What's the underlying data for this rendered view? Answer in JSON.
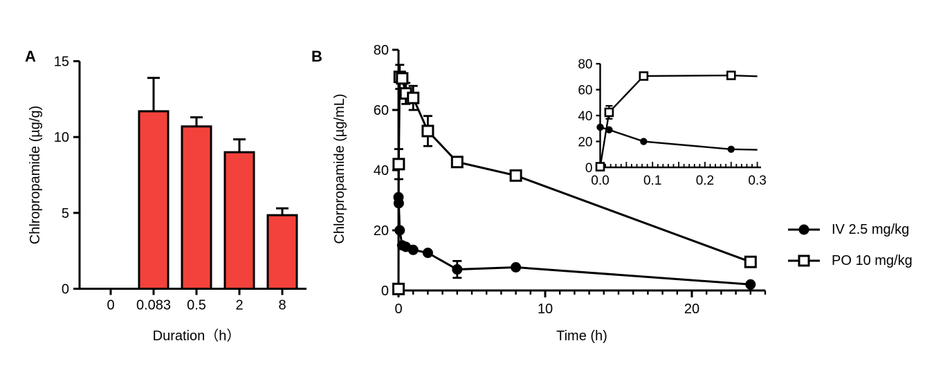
{
  "figure": {
    "background": "#ffffff",
    "text_color": "#000000"
  },
  "panels": {
    "a": {
      "label": "A"
    },
    "b": {
      "label": "B"
    }
  },
  "legend": {
    "items": [
      {
        "id": "iv",
        "label": "IV 2.5 mg/kg",
        "marker": "filled-circle"
      },
      {
        "id": "po",
        "label": "PO 10 mg/kg",
        "marker": "open-square"
      }
    ]
  },
  "colors": {
    "bar_fill": "#F3423B",
    "stroke": "#000000",
    "marker_open_fill": "#ffffff"
  },
  "chart_data": [
    {
      "id": "panel-a",
      "type": "bar",
      "title": "",
      "xlabel": "Duration（h）",
      "ylabel": "Chlropropamide (µg/g)",
      "categories": [
        "0",
        "0.083",
        "0.5",
        "2",
        "8"
      ],
      "values": [
        0,
        11.7,
        10.7,
        9.0,
        4.85
      ],
      "errors_upper": [
        0,
        2.2,
        0.6,
        0.85,
        0.45
      ],
      "ylim": [
        0,
        15
      ],
      "yticks": [
        0,
        5,
        10,
        15
      ],
      "ytick_labels": [
        "0",
        "5",
        "10",
        "15"
      ],
      "grid": false,
      "bar_color": "#F3423B"
    },
    {
      "id": "panel-b",
      "type": "line",
      "title": "",
      "xlabel": "Time (h)",
      "ylabel": "Chlorpropamide (µg/mL)",
      "xlim": [
        0,
        25
      ],
      "ylim": [
        0,
        80
      ],
      "xticks": [
        0,
        10,
        20
      ],
      "xtick_labels": [
        "0",
        "10",
        "20"
      ],
      "minor_xtick_every": 1,
      "yticks": [
        0,
        20,
        40,
        60,
        80
      ],
      "ytick_labels": [
        "0",
        "20",
        "40",
        "60",
        "80"
      ],
      "grid": false,
      "legend_position": "right-outside",
      "series": [
        {
          "name": "IV 2.5 mg/kg",
          "marker": "filled-circle",
          "x": [
            0,
            0.017,
            0.083,
            0.25,
            0.5,
            1,
            2,
            4,
            8,
            24
          ],
          "y": [
            31,
            29,
            20,
            15,
            14.5,
            13.5,
            12.5,
            7,
            7.7,
            2
          ],
          "err": [
            0,
            0,
            0,
            0,
            0,
            0,
            0,
            2.8,
            0,
            0
          ]
        },
        {
          "name": "PO 10 mg/kg",
          "marker": "open-square",
          "x": [
            0,
            0.017,
            0.083,
            0.25,
            0.5,
            1,
            2,
            4,
            8,
            24
          ],
          "y": [
            0.5,
            42,
            71,
            70.5,
            65.5,
            64,
            53,
            42.7,
            38.2,
            9.5
          ],
          "err": [
            0,
            5,
            4,
            0,
            3.5,
            4,
            5,
            0,
            0,
            0
          ]
        }
      ]
    },
    {
      "id": "panel-b-inset",
      "type": "line",
      "title": "",
      "xlabel": "",
      "ylabel": "",
      "xlim": [
        0,
        0.3
      ],
      "ylim": [
        0,
        80
      ],
      "xticks": [
        0,
        0.1,
        0.2,
        0.3
      ],
      "xtick_labels": [
        "0.0",
        "0.1",
        "0.2",
        "0.3"
      ],
      "minor_xtick_every": 0.01,
      "yticks": [
        0,
        20,
        40,
        60,
        80
      ],
      "ytick_labels": [
        "0",
        "20",
        "40",
        "60",
        "80"
      ],
      "grid": false,
      "series": [
        {
          "name": "IV 2.5 mg/kg",
          "marker": "filled-circle",
          "x": [
            0,
            0.017,
            0.083,
            0.25
          ],
          "y": [
            31,
            29,
            20,
            14
          ],
          "err": [
            0,
            0,
            0,
            0
          ],
          "trail": {
            "x": 0.3,
            "y": 13.6
          }
        },
        {
          "name": "PO 10 mg/kg",
          "marker": "open-square",
          "x": [
            0,
            0.017,
            0.083,
            0.25
          ],
          "y": [
            0.5,
            42.5,
            70.5,
            71
          ],
          "err": [
            0,
            5,
            2.5,
            0
          ],
          "trail": {
            "x": 0.3,
            "y": 70.3
          }
        }
      ]
    }
  ]
}
